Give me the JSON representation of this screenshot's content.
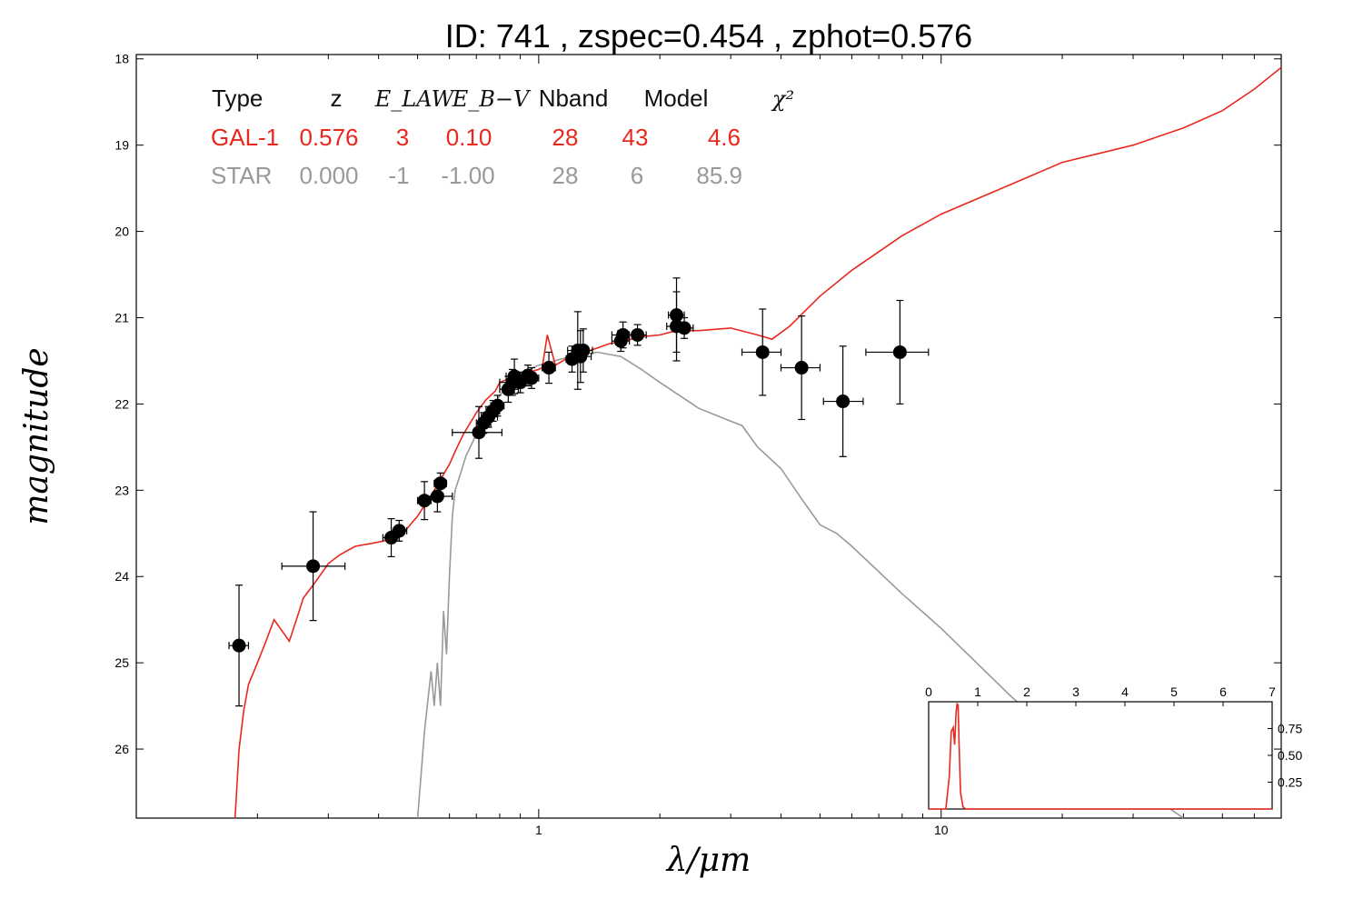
{
  "chart_data": {
    "type": "scatter",
    "title": "ID:  741   , zspec=0.454 , zphot=0.576",
    "xlabel": "λ/μm",
    "ylabel": "magnitude",
    "x_scale": "log",
    "xlim": [
      0.1,
      70
    ],
    "ylim": [
      26.8,
      17.95
    ],
    "y_inverted": true,
    "x_ticks": [
      {
        "value": 1,
        "label": "1"
      },
      {
        "value": 10,
        "label": "10"
      }
    ],
    "y_ticks": [
      {
        "value": 18,
        "label": "18"
      },
      {
        "value": 19,
        "label": "19"
      },
      {
        "value": 20,
        "label": "20"
      },
      {
        "value": 21,
        "label": "21"
      },
      {
        "value": 22,
        "label": "22"
      },
      {
        "value": 23,
        "label": "23"
      },
      {
        "value": 24,
        "label": "24"
      },
      {
        "value": 25,
        "label": "25"
      },
      {
        "value": 26,
        "label": "26"
      }
    ],
    "fit_table": {
      "headers": [
        "Type",
        "z",
        "E_LAW",
        "E_B−V",
        "Nband",
        "Model",
        "χ²"
      ],
      "rows": [
        {
          "color": "#e8281e",
          "values": [
            "GAL-1",
            "0.576",
            "3",
            "0.10",
            "28",
            "43",
            "4.6"
          ]
        },
        {
          "color": "#999999",
          "values": [
            "STAR",
            "0.000",
            "-1",
            "-1.00",
            "28",
            "6",
            "85.9"
          ]
        }
      ]
    },
    "series": [
      {
        "name": "GAL-1",
        "kind": "line",
        "color": "#e8281e",
        "x": [
          0.176,
          0.18,
          0.185,
          0.19,
          0.2,
          0.21,
          0.22,
          0.24,
          0.25,
          0.26,
          0.28,
          0.3,
          0.32,
          0.35,
          0.38,
          0.4,
          0.42,
          0.45,
          0.5,
          0.55,
          0.6,
          0.62,
          0.65,
          0.7,
          0.74,
          0.78,
          0.8,
          0.85,
          0.9,
          0.95,
          1.0,
          1.02,
          1.05,
          1.1,
          1.2,
          1.3,
          1.4,
          1.5,
          1.6,
          1.8,
          2.0,
          2.2,
          2.5,
          3.0,
          3.5,
          3.8,
          4.2,
          5,
          6,
          8,
          10,
          15,
          20,
          30,
          40,
          50,
          60,
          70
        ],
        "y": [
          26.8,
          26.0,
          25.55,
          25.25,
          25.0,
          24.75,
          24.5,
          24.75,
          24.5,
          24.25,
          24.05,
          23.85,
          23.75,
          23.65,
          23.62,
          23.6,
          23.58,
          23.55,
          23.3,
          23.0,
          22.7,
          22.55,
          22.35,
          22.1,
          21.95,
          21.85,
          21.75,
          21.7,
          21.67,
          21.63,
          21.6,
          21.58,
          21.2,
          21.55,
          21.45,
          21.4,
          21.35,
          21.3,
          21.28,
          21.22,
          21.2,
          21.15,
          21.15,
          21.12,
          21.2,
          21.25,
          21.1,
          20.75,
          20.45,
          20.05,
          19.8,
          19.45,
          19.2,
          19.0,
          18.8,
          18.6,
          18.35,
          18.1
        ]
      },
      {
        "name": "STAR",
        "kind": "line",
        "color": "#999999",
        "x": [
          0.5,
          0.52,
          0.54,
          0.55,
          0.56,
          0.57,
          0.58,
          0.59,
          0.6,
          0.61,
          0.62,
          0.64,
          0.66,
          0.7,
          0.75,
          0.8,
          0.85,
          0.9,
          1.0,
          1.2,
          1.4,
          1.6,
          1.8,
          2.0,
          2.5,
          3.0,
          3.2,
          3.5,
          4.0,
          4.5,
          5.0,
          5.5,
          6,
          8,
          10,
          15,
          20,
          30,
          40
        ],
        "y": [
          26.8,
          25.8,
          25.1,
          25.5,
          25.0,
          25.5,
          24.4,
          24.9,
          24.0,
          23.3,
          23.0,
          22.8,
          22.6,
          22.35,
          22.15,
          21.9,
          21.75,
          21.65,
          21.55,
          21.45,
          21.4,
          21.45,
          21.6,
          21.75,
          22.05,
          22.2,
          22.25,
          22.5,
          22.75,
          23.1,
          23.4,
          23.5,
          23.65,
          24.2,
          24.6,
          25.4,
          25.9,
          26.4,
          26.8
        ]
      },
      {
        "name": "observed",
        "kind": "points",
        "color": "#000000",
        "points": [
          {
            "x": 0.18,
            "y": 24.8,
            "xlo": 0.17,
            "xhi": 0.19,
            "yerr": 0.7
          },
          {
            "x": 0.275,
            "y": 23.88,
            "xlo": 0.23,
            "xhi": 0.33,
            "yerr": 0.63
          },
          {
            "x": 0.43,
            "y": 23.55,
            "xlo": 0.41,
            "xhi": 0.45,
            "yerr": 0.22
          },
          {
            "x": 0.45,
            "y": 23.47,
            "xlo": 0.43,
            "xhi": 0.47,
            "yerr": 0.12
          },
          {
            "x": 0.52,
            "y": 23.12,
            "xlo": 0.5,
            "xhi": 0.54,
            "yerr": 0.22
          },
          {
            "x": 0.57,
            "y": 22.92,
            "xlo": 0.55,
            "xhi": 0.59,
            "yerr": 0.12
          },
          {
            "x": 0.56,
            "y": 23.07,
            "xlo": 0.52,
            "xhi": 0.61,
            "yerr": 0.18
          },
          {
            "x": 0.71,
            "y": 22.33,
            "xlo": 0.61,
            "xhi": 0.81,
            "yerr": 0.3
          },
          {
            "x": 0.73,
            "y": 22.22,
            "xlo": 0.7,
            "xhi": 0.76,
            "yerr": 0.12
          },
          {
            "x": 0.75,
            "y": 22.15,
            "xlo": 0.72,
            "xhi": 0.79,
            "yerr": 0.12
          },
          {
            "x": 0.77,
            "y": 22.08,
            "xlo": 0.74,
            "xhi": 0.8,
            "yerr": 0.12
          },
          {
            "x": 0.79,
            "y": 22.02,
            "xlo": 0.76,
            "xhi": 0.82,
            "yerr": 0.12
          },
          {
            "x": 0.84,
            "y": 21.83,
            "xlo": 0.8,
            "xhi": 0.89,
            "yerr": 0.15
          },
          {
            "x": 0.86,
            "y": 21.75,
            "xlo": 0.8,
            "xhi": 0.92,
            "yerr": 0.15
          },
          {
            "x": 0.87,
            "y": 21.68,
            "xlo": 0.83,
            "xhi": 0.91,
            "yerr": 0.2
          },
          {
            "x": 0.9,
            "y": 21.75,
            "xlo": 0.86,
            "xhi": 0.95,
            "yerr": 0.12
          },
          {
            "x": 0.94,
            "y": 21.67,
            "xlo": 0.9,
            "xhi": 0.98,
            "yerr": 0.12
          },
          {
            "x": 0.96,
            "y": 21.7,
            "xlo": 0.92,
            "xhi": 1.0,
            "yerr": 0.12
          },
          {
            "x": 1.06,
            "y": 21.58,
            "xlo": 1.02,
            "xhi": 1.1,
            "yerr": 0.18
          },
          {
            "x": 1.21,
            "y": 21.48,
            "xlo": 1.17,
            "xhi": 1.25,
            "yerr": 0.15
          },
          {
            "x": 1.25,
            "y": 21.38,
            "xlo": 1.18,
            "xhi": 1.32,
            "yerr": 0.45
          },
          {
            "x": 1.27,
            "y": 21.45,
            "xlo": 1.2,
            "xhi": 1.35,
            "yerr": 0.3
          },
          {
            "x": 1.29,
            "y": 21.38,
            "xlo": 1.22,
            "xhi": 1.36,
            "yerr": 0.25
          },
          {
            "x": 1.6,
            "y": 21.27,
            "xlo": 1.52,
            "xhi": 1.68,
            "yerr": 0.12
          },
          {
            "x": 1.62,
            "y": 21.2,
            "xlo": 1.52,
            "xhi": 1.72,
            "yerr": 0.15
          },
          {
            "x": 1.76,
            "y": 21.2,
            "xlo": 1.68,
            "xhi": 1.85,
            "yerr": 0.12
          },
          {
            "x": 2.2,
            "y": 20.97,
            "xlo": 2.1,
            "xhi": 2.3,
            "yerr": 0.43
          },
          {
            "x": 2.2,
            "y": 21.1,
            "xlo": 2.08,
            "xhi": 2.32,
            "yerr": 0.4
          },
          {
            "x": 2.3,
            "y": 21.12,
            "xlo": 2.18,
            "xhi": 2.42,
            "yerr": 0.12
          },
          {
            "x": 3.6,
            "y": 21.4,
            "xlo": 3.2,
            "xhi": 4.0,
            "yerr": 0.5
          },
          {
            "x": 4.5,
            "y": 21.58,
            "xlo": 4.0,
            "xhi": 5.0,
            "yerr": 0.6
          },
          {
            "x": 5.7,
            "y": 21.97,
            "xlo": 5.1,
            "xhi": 6.4,
            "yerr": 0.64
          },
          {
            "x": 7.9,
            "y": 21.4,
            "xlo": 6.5,
            "xhi": 9.3,
            "yerr": 0.6
          }
        ]
      }
    ],
    "inset": {
      "type": "line",
      "xlim": [
        0,
        7
      ],
      "ylim": [
        0,
        1
      ],
      "x_ticks": [
        "0",
        "1",
        "2",
        "3",
        "4",
        "5",
        "6",
        "7"
      ],
      "y_ticks": [
        {
          "value": 0.25,
          "label": "0.25"
        },
        {
          "value": 0.5,
          "label": "0.50"
        },
        {
          "value": 0.75,
          "label": "0.75"
        }
      ],
      "color": "#e8281e",
      "x": [
        0.0,
        0.35,
        0.42,
        0.46,
        0.5,
        0.53,
        0.56,
        0.58,
        0.6,
        0.62,
        0.65,
        0.7,
        0.75,
        7.0
      ],
      "y": [
        0.0,
        0.0,
        0.3,
        0.72,
        0.76,
        0.6,
        0.9,
        0.98,
        0.97,
        0.6,
        0.15,
        0.02,
        0.0,
        0.0
      ]
    }
  }
}
